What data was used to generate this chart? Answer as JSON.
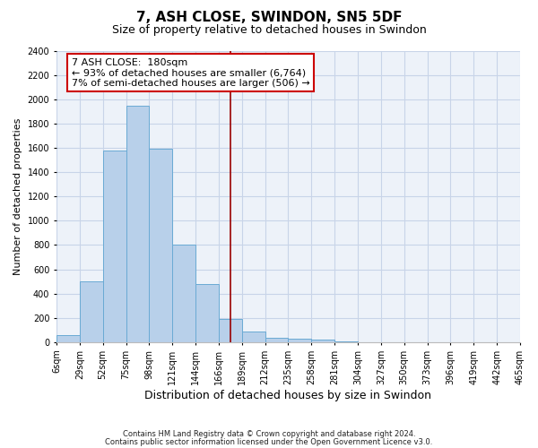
{
  "title": "7, ASH CLOSE, SWINDON, SN5 5DF",
  "subtitle": "Size of property relative to detached houses in Swindon",
  "xlabel": "Distribution of detached houses by size in Swindon",
  "ylabel": "Number of detached properties",
  "footer_line1": "Contains HM Land Registry data © Crown copyright and database right 2024.",
  "footer_line2": "Contains public sector information licensed under the Open Government Licence v3.0.",
  "bin_labels": [
    "6sqm",
    "29sqm",
    "52sqm",
    "75sqm",
    "98sqm",
    "121sqm",
    "144sqm",
    "166sqm",
    "189sqm",
    "212sqm",
    "235sqm",
    "258sqm",
    "281sqm",
    "304sqm",
    "327sqm",
    "350sqm",
    "373sqm",
    "396sqm",
    "419sqm",
    "442sqm",
    "465sqm"
  ],
  "bar_values": [
    60,
    500,
    1580,
    1950,
    1590,
    800,
    480,
    190,
    90,
    35,
    30,
    25,
    5,
    2,
    2,
    2,
    1,
    1,
    1,
    1
  ],
  "bar_color": "#b8d0ea",
  "bar_edge_color": "#6aaad4",
  "property_line_x": 7.5,
  "property_line_color": "#990000",
  "annotation_text": "7 ASH CLOSE:  180sqm\n← 93% of detached houses are smaller (6,764)\n7% of semi-detached houses are larger (506) →",
  "annotation_box_color": "#ffffff",
  "annotation_box_edge_color": "#cc0000",
  "ylim": [
    0,
    2400
  ],
  "yticks": [
    0,
    200,
    400,
    600,
    800,
    1000,
    1200,
    1400,
    1600,
    1800,
    2000,
    2200,
    2400
  ],
  "grid_color": "#c8d4e8",
  "bg_color": "#edf2f9",
  "title_fontsize": 11,
  "subtitle_fontsize": 9,
  "xlabel_fontsize": 9,
  "ylabel_fontsize": 8,
  "tick_fontsize": 7,
  "footer_fontsize": 6,
  "annot_fontsize": 8
}
